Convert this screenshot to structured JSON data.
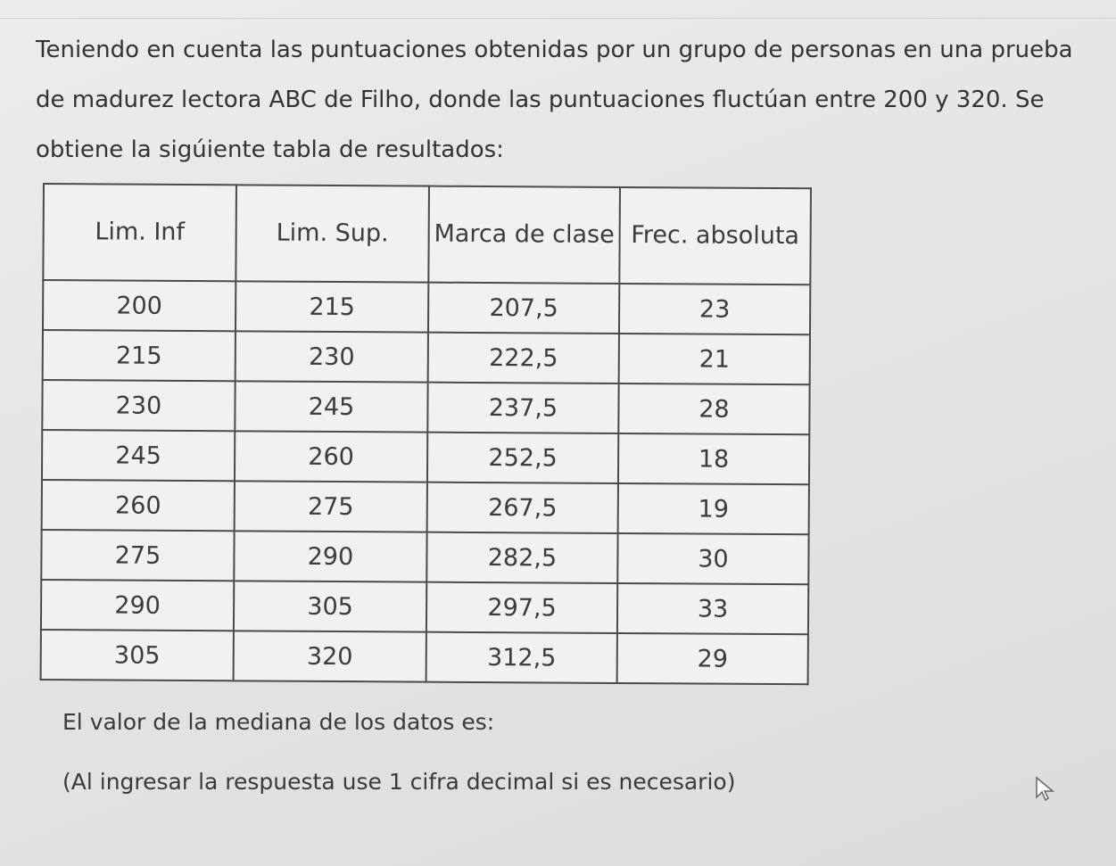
{
  "intro": "Teniendo en cuenta las puntuaciones obtenidas por un grupo de personas en una prueba de madurez lectora ABC de Filho, donde las puntuaciones fluctúan entre 200 y 320. Se obtiene la sigúiente tabla de resultados:",
  "table": {
    "headers": [
      "Lim. Inf",
      "Lim. Sup.",
      "Marca de clase",
      "Frec. absoluta"
    ],
    "rows": [
      [
        "200",
        "215",
        "207,5",
        "23"
      ],
      [
        "215",
        "230",
        "222,5",
        "21"
      ],
      [
        "230",
        "245",
        "237,5",
        "28"
      ],
      [
        "245",
        "260",
        "252,5",
        "18"
      ],
      [
        "260",
        "275",
        "267,5",
        "19"
      ],
      [
        "275",
        "290",
        "282,5",
        "30"
      ],
      [
        "290",
        "305",
        "297,5",
        "33"
      ],
      [
        "305",
        "320",
        "312,5",
        "29"
      ]
    ]
  },
  "question": "El valor de la mediana de los datos es:",
  "note": "(Al ingresar la respuesta use 1 cifra decimal si es necesario)",
  "icons": {
    "cursor": "mouse-pointer-icon"
  }
}
